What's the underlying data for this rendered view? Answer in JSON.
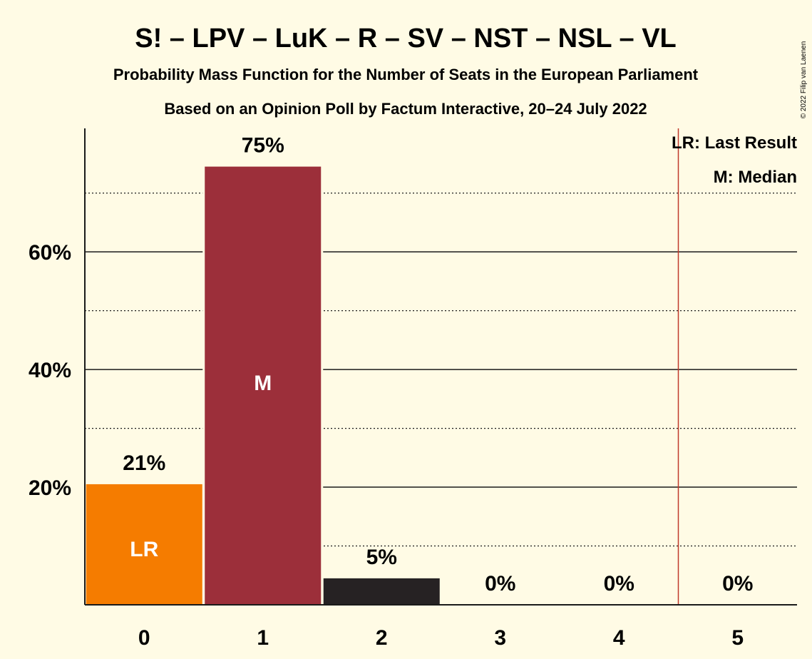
{
  "chart_data": {
    "type": "bar",
    "title": "S! – LPV – LuK – R – SV – NST – NSL – VL",
    "subtitle1": "Probability Mass Function for the Number of Seats in the European Parliament",
    "subtitle2": "Based on an Opinion Poll by Factum Interactive, 20–24 July 2022",
    "categories": [
      "0",
      "1",
      "2",
      "3",
      "4",
      "5"
    ],
    "values": [
      20.5,
      74.5,
      4.5,
      0,
      0,
      0
    ],
    "value_labels": [
      "21%",
      "75%",
      "5%",
      "0%",
      "0%",
      "0%"
    ],
    "bar_colors": [
      "#f57c00",
      "#9c2f3a",
      "#262223",
      "#262223",
      "#262223",
      "#262223"
    ],
    "bar_markers": [
      "LR",
      "M",
      "",
      "",
      "",
      ""
    ],
    "y_ticks": [
      {
        "value": 20,
        "label": "20%"
      },
      {
        "value": 40,
        "label": "40%"
      },
      {
        "value": 60,
        "label": "60%"
      }
    ],
    "y_minor_gridlines": [
      10,
      30,
      50,
      70
    ],
    "ylim": [
      0,
      81
    ],
    "last_result_line_x": 4.5,
    "legend": {
      "placement": "top-right",
      "entries": [
        "LR: Last Result",
        "M: Median"
      ]
    },
    "copyright": "© 2022 Filip van Laenen",
    "colors": {
      "background": "#fffbe5",
      "last_result_line": "#c0392b",
      "text": "#1a1a1a"
    }
  }
}
